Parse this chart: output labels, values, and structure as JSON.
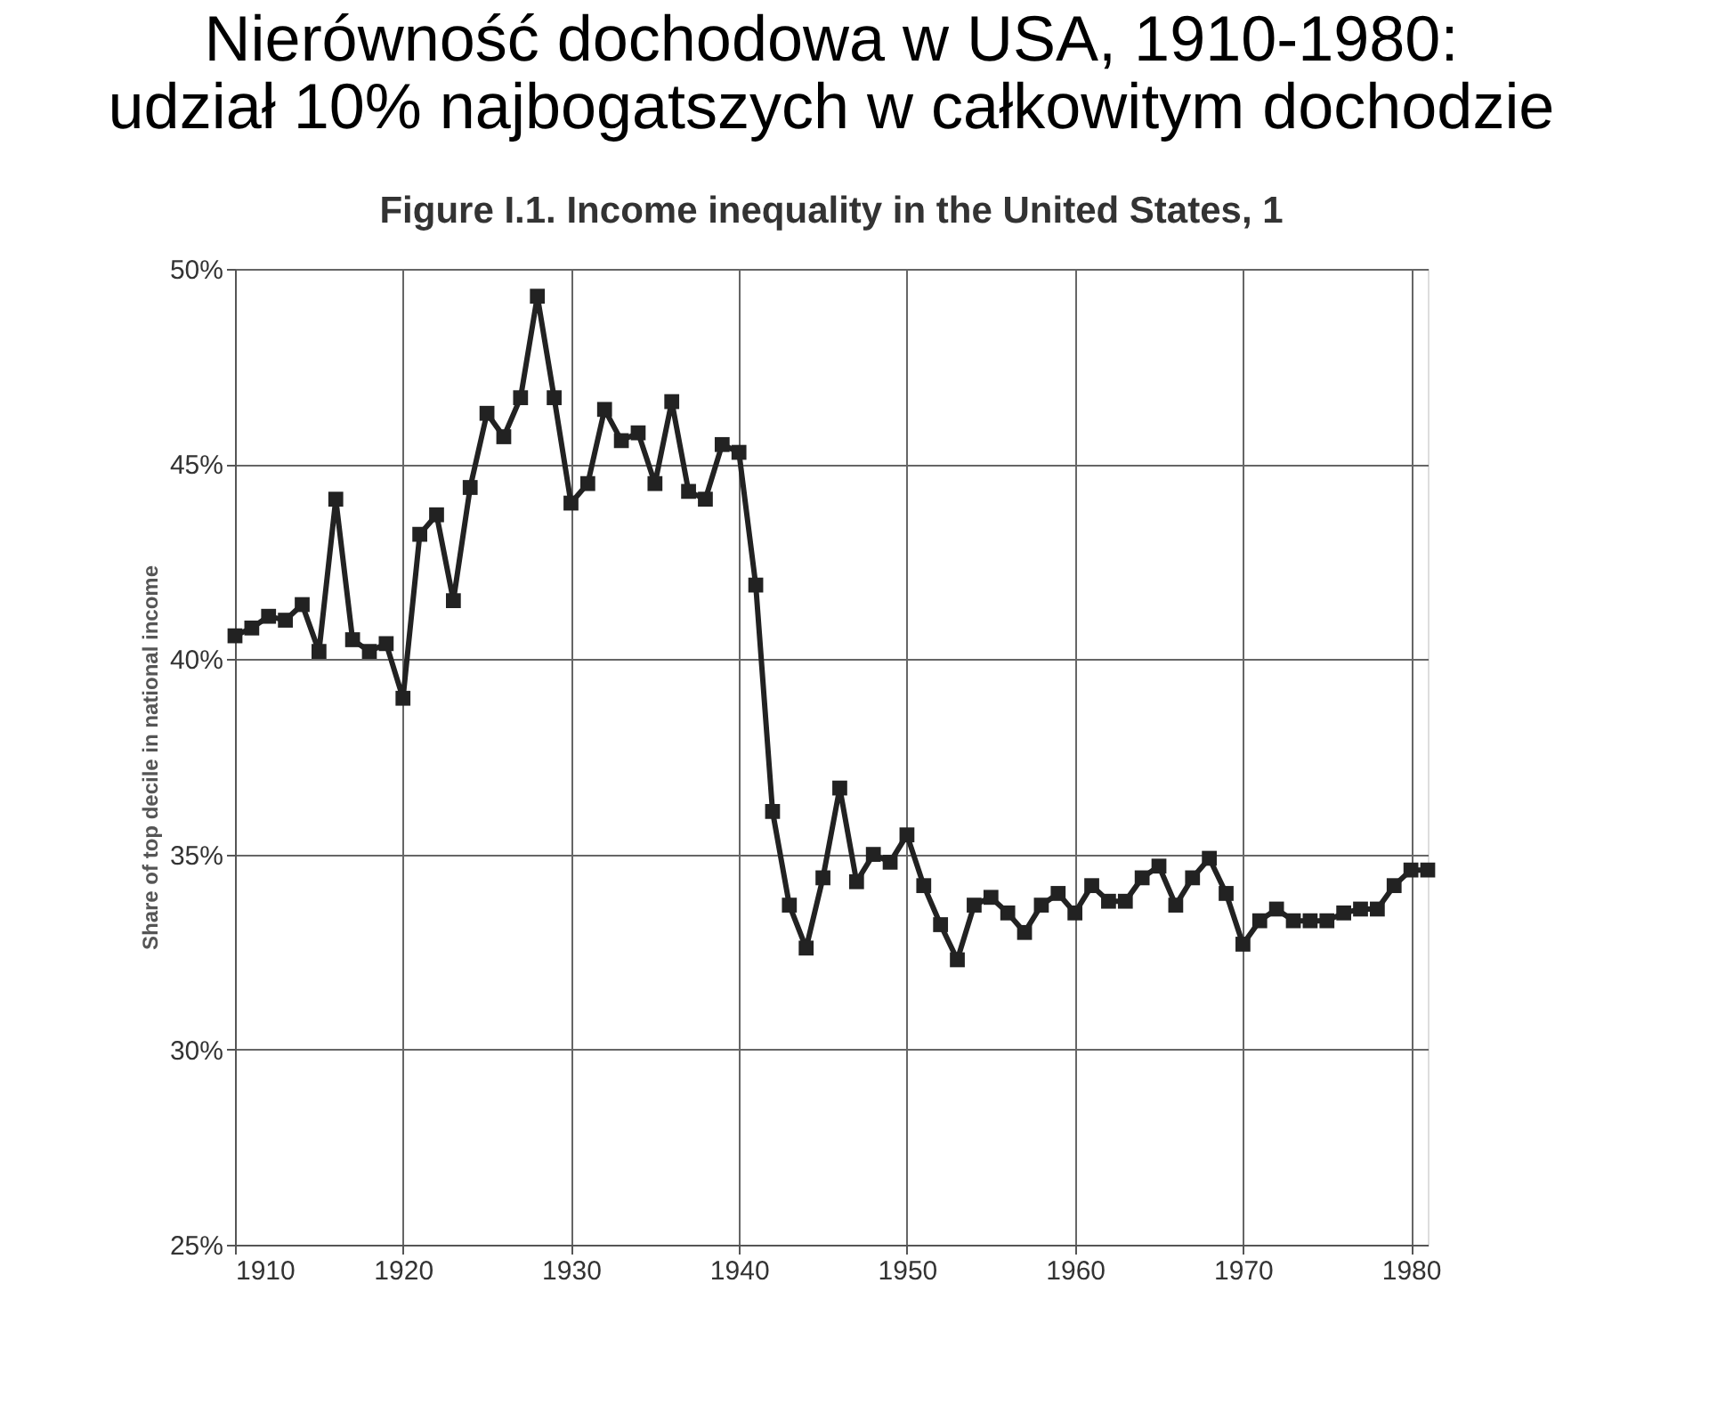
{
  "chart_data": {
    "type": "line",
    "title": [
      "Nierówność dochodowa w USA, 1910-1980:",
      "udział 10% najbogatszych w całkowitym dochodzie"
    ],
    "subtitle": "Figure I.1. Income inequality in the United States, 1",
    "ylabel": "Share of top decile in national income",
    "x": [
      1910,
      1911,
      1912,
      1913,
      1914,
      1915,
      1916,
      1917,
      1918,
      1919,
      1920,
      1921,
      1922,
      1923,
      1924,
      1925,
      1926,
      1927,
      1928,
      1929,
      1930,
      1931,
      1932,
      1933,
      1934,
      1935,
      1936,
      1937,
      1938,
      1939,
      1940,
      1941,
      1942,
      1943,
      1944,
      1945,
      1946,
      1947,
      1948,
      1949,
      1950,
      1951,
      1952,
      1953,
      1954,
      1955,
      1956,
      1957,
      1958,
      1959,
      1960,
      1961,
      1962,
      1963,
      1964,
      1965,
      1966,
      1967,
      1968,
      1969,
      1970,
      1971,
      1972,
      1973,
      1974,
      1975,
      1976,
      1977,
      1978,
      1979,
      1980,
      1981
    ],
    "series": [
      {
        "color": "#222222",
        "values": [
          40.6,
          40.8,
          41.1,
          41.0,
          41.4,
          40.2,
          44.1,
          40.5,
          40.2,
          40.4,
          39.0,
          43.2,
          43.7,
          41.5,
          44.4,
          46.3,
          45.7,
          46.7,
          49.3,
          46.7,
          44.0,
          44.5,
          46.4,
          45.6,
          45.8,
          44.5,
          46.6,
          44.3,
          44.1,
          45.5,
          45.3,
          41.9,
          36.1,
          33.7,
          32.6,
          34.4,
          36.7,
          34.3,
          35.0,
          34.8,
          35.5,
          34.2,
          33.2,
          32.3,
          33.7,
          33.9,
          33.5,
          33.0,
          33.7,
          34.0,
          33.5,
          34.2,
          33.8,
          33.8,
          34.4,
          34.7,
          33.7,
          34.4,
          34.9,
          34.0,
          32.7,
          33.3,
          33.6,
          33.3,
          33.3,
          33.3,
          33.5,
          33.6,
          33.6,
          34.2,
          34.6,
          34.6
        ]
      }
    ],
    "xlim": [
      1910,
      1981
    ],
    "xticks": [
      1910,
      1920,
      1930,
      1940,
      1950,
      1960,
      1970,
      1980
    ],
    "ylim": [
      25,
      50
    ],
    "yticks": [
      {
        "value": 25,
        "label": "25%"
      },
      {
        "value": 30,
        "label": "30%"
      },
      {
        "value": 35,
        "label": "35%"
      },
      {
        "value": 40,
        "label": "40%"
      },
      {
        "value": 45,
        "label": "45%"
      },
      {
        "value": 50,
        "label": "50%"
      }
    ],
    "grid": true,
    "marker": "square",
    "line_style": "solid"
  }
}
